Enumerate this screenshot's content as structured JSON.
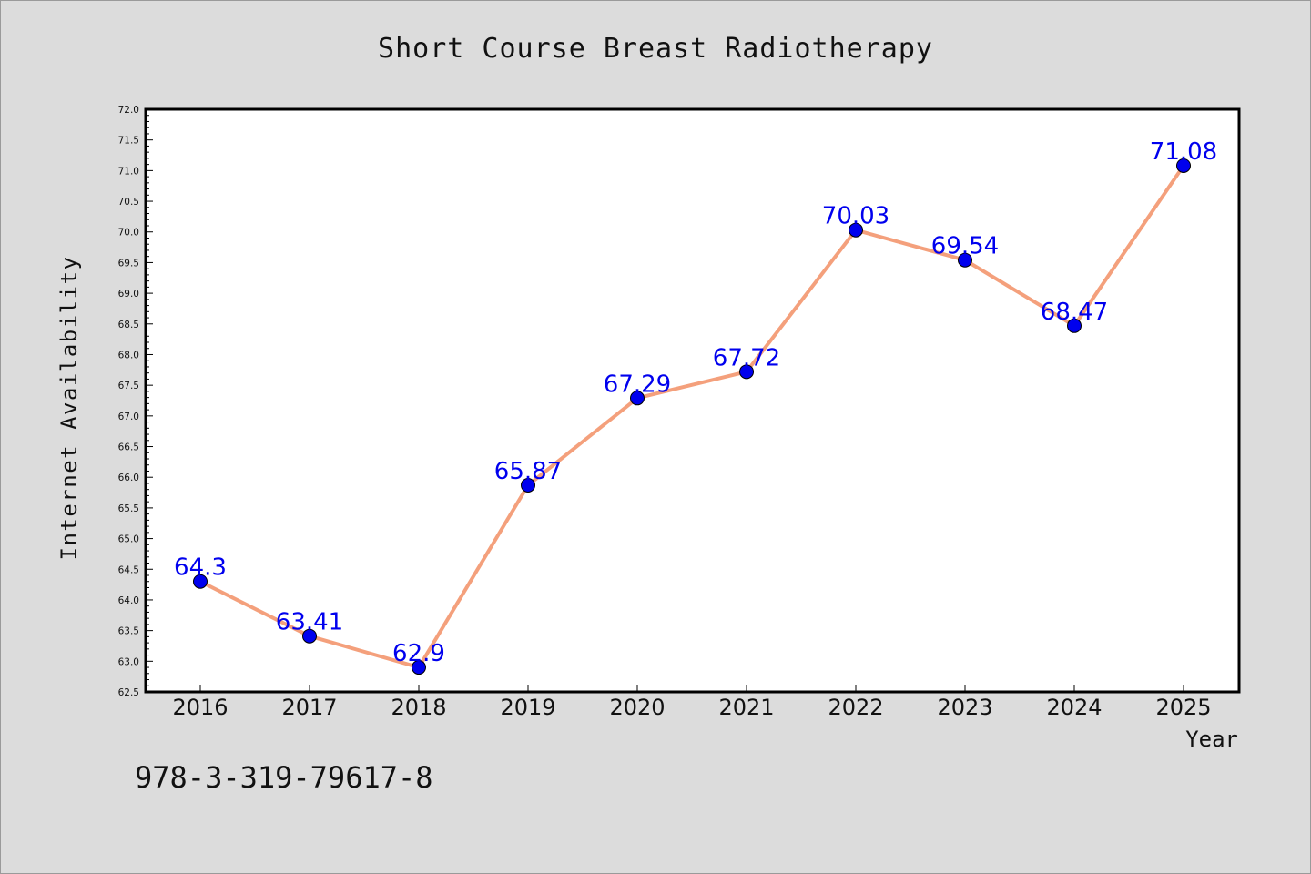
{
  "chart_data": {
    "type": "line",
    "title": "Short Course Breast Radiotherapy",
    "xlabel": "Year",
    "ylabel": "Internet Availability",
    "categories": [
      "2016",
      "2017",
      "2018",
      "2019",
      "2020",
      "2021",
      "2022",
      "2023",
      "2024",
      "2025"
    ],
    "series": [
      {
        "values": [
          64.3,
          63.41,
          62.9,
          65.87,
          67.29,
          67.72,
          70.03,
          69.54,
          68.47,
          71.08
        ],
        "data_labels": [
          "64.3",
          "63.41",
          "62.9",
          "65.87",
          "67.29",
          "67.72",
          "70.03",
          "69.54",
          "68.47",
          "71.08"
        ]
      }
    ],
    "ylim": [
      62.5,
      72.0
    ],
    "yticks": [
      "62.5",
      "63.0",
      "63.5",
      "64.0",
      "64.5",
      "65.0",
      "65.5",
      "66.0",
      "66.5",
      "67.0",
      "67.5",
      "68.0",
      "68.5",
      "69.0",
      "69.5",
      "70.0",
      "70.5",
      "71.0",
      "71.5",
      "72.0"
    ],
    "grid": false,
    "colors": {
      "line": "#f4a07c",
      "marker": "#0000ee",
      "data_label": "#0000ee",
      "plot_background": "#ffffff",
      "figure_background": "#dcdcdc"
    }
  },
  "footer": {
    "text": "978-3-319-79617-8"
  }
}
